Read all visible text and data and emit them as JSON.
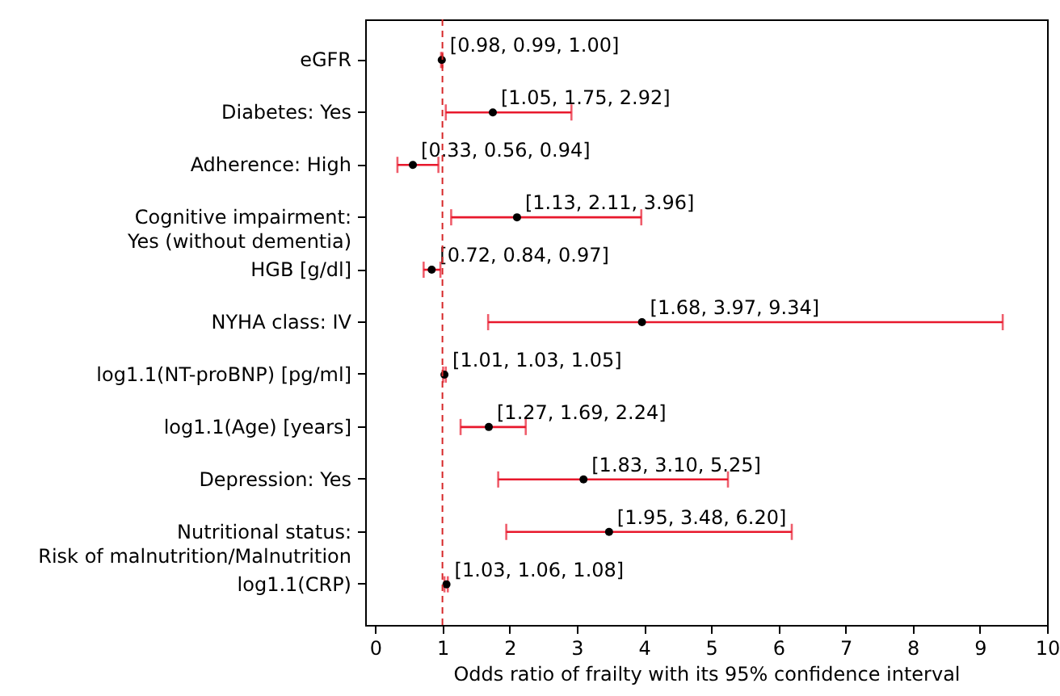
{
  "chart_data": {
    "type": "scatter",
    "orientation": "horizontal",
    "xlabel": "Odds ratio of frailty with its 95% confidence interval",
    "categories": [
      "eGFR",
      "Diabetes: Yes",
      "Adherence: High",
      "Cognitive impairment:\nYes (without dementia)",
      "HGB [g/dl]",
      "NYHA class: IV",
      "log1.1(NT-proBNP) [pg/ml]",
      "log1.1(Age) [years]",
      "Depression: Yes",
      "Nutritional status:\nRisk of malnutrition/Malnutrition",
      "log1.1(CRP)"
    ],
    "series": [
      {
        "color": "#000000",
        "values": [
          0.99,
          1.75,
          0.56,
          2.11,
          0.84,
          3.97,
          1.03,
          1.69,
          3.1,
          3.48,
          1.06
        ],
        "errors": [
          [
            0.98,
            1.0
          ],
          [
            1.05,
            2.92
          ],
          [
            0.33,
            0.94
          ],
          [
            1.13,
            3.96
          ],
          [
            0.72,
            0.97
          ],
          [
            1.68,
            9.34
          ],
          [
            1.01,
            1.05
          ],
          [
            1.27,
            2.24
          ],
          [
            1.83,
            5.25
          ],
          [
            1.95,
            6.2
          ],
          [
            1.03,
            1.08
          ]
        ],
        "value_labels": [
          "[0.98, 0.99, 1.00]",
          "[1.05, 1.75, 2.92]",
          "[0.33, 0.56, 0.94]",
          "[1.13, 2.11, 3.96]",
          "[0.72, 0.84, 0.97]",
          "[1.68, 3.97, 9.34]",
          "[1.01, 1.03, 1.05]",
          "[1.27, 1.69, 2.24]",
          "[1.83, 3.10, 5.25]",
          "[1.95, 3.48, 6.20]",
          "[1.03, 1.06, 1.08]"
        ]
      }
    ],
    "xlim": [
      -0.15,
      10
    ],
    "xticks": [
      0,
      1,
      2,
      3,
      4,
      5,
      6,
      7,
      8,
      9,
      10
    ],
    "ref_lines": [
      {
        "axis": "x",
        "value": 1,
        "color": "#d62728",
        "line_style": "dashed"
      }
    ],
    "marker": "circle",
    "grid": false
  }
}
